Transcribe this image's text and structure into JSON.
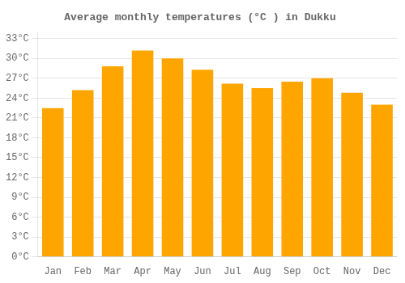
{
  "chart_data": {
    "type": "bar",
    "title": "Average monthly temperatures (°C ) in Dukku",
    "categories": [
      "Jan",
      "Feb",
      "Mar",
      "Apr",
      "May",
      "Jun",
      "Jul",
      "Aug",
      "Sep",
      "Oct",
      "Nov",
      "Dec"
    ],
    "values": [
      22.5,
      25.2,
      28.8,
      31.2,
      30.0,
      28.3,
      26.2,
      25.5,
      26.5,
      27.0,
      24.8,
      23.0
    ],
    "color": "#FFA500",
    "ylim": [
      0,
      34
    ],
    "yticks": [
      {
        "value": 0,
        "label": "0°C"
      },
      {
        "value": 3,
        "label": "3°C"
      },
      {
        "value": 6,
        "label": "6°C"
      },
      {
        "value": 9,
        "label": "9°C"
      },
      {
        "value": 12,
        "label": "12°C"
      },
      {
        "value": 15,
        "label": "15°C"
      },
      {
        "value": 18,
        "label": "18°C"
      },
      {
        "value": 21,
        "label": "21°C"
      },
      {
        "value": 24,
        "label": "24°C"
      },
      {
        "value": 27,
        "label": "27°C"
      },
      {
        "value": 30,
        "label": "30°C"
      },
      {
        "value": 33,
        "label": "33°C"
      }
    ],
    "grid": true
  }
}
